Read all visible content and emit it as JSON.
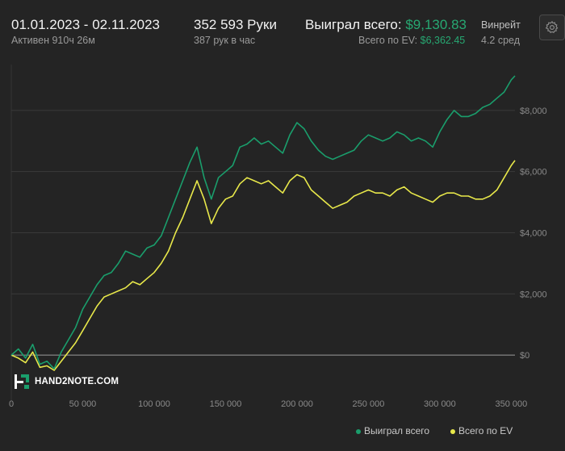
{
  "header": {
    "date_range": "01.01.2023 - 02.11.2023",
    "active_time": "Активен 910ч 26м",
    "hands": "352 593 Руки",
    "hands_per_hour": "387 рук в час",
    "won_total_label": "Выиграл всего:",
    "won_total_value": "$9,130.83",
    "ev_total_label": "Всего по EV:",
    "ev_total_value": "$6,362.45",
    "winrate_label": "Винрейт",
    "winrate_sub": "4.2 сред",
    "settings_icon": "gear-icon"
  },
  "logo": {
    "text": "HAND2NOTE.COM",
    "icon": "hand2note-logo-icon"
  },
  "colors": {
    "won": "#1a9e6c",
    "ev": "#e8e84a",
    "background": "#242424",
    "grid": "#3a3a3a",
    "zero_line": "#9a9a9a"
  },
  "chart_data": {
    "type": "line",
    "title": "",
    "xlabel": "",
    "ylabel": "",
    "xlim": [
      0,
      352593
    ],
    "ylim": [
      -1000,
      9500
    ],
    "y_axis_position": "right",
    "grid": true,
    "legend_position": "bottom-right",
    "x_ticks": [
      {
        "value": 0,
        "label": "0"
      },
      {
        "value": 50000,
        "label": "50 000"
      },
      {
        "value": 100000,
        "label": "100 000"
      },
      {
        "value": 150000,
        "label": "150 000"
      },
      {
        "value": 200000,
        "label": "200 000"
      },
      {
        "value": 250000,
        "label": "250 000"
      },
      {
        "value": 300000,
        "label": "300 000"
      },
      {
        "value": 350000,
        "label": "350 000"
      }
    ],
    "y_ticks": [
      {
        "value": 0,
        "label": "$0"
      },
      {
        "value": 2000,
        "label": "$2,000"
      },
      {
        "value": 4000,
        "label": "$4,000"
      },
      {
        "value": 6000,
        "label": "$6,000"
      },
      {
        "value": 8000,
        "label": "$8,000"
      }
    ],
    "x": [
      0,
      5000,
      10000,
      15000,
      20000,
      25000,
      30000,
      35000,
      40000,
      45000,
      50000,
      55000,
      60000,
      65000,
      70000,
      75000,
      80000,
      85000,
      90000,
      95000,
      100000,
      105000,
      110000,
      115000,
      120000,
      125000,
      130000,
      135000,
      140000,
      145000,
      150000,
      155000,
      160000,
      165000,
      170000,
      175000,
      180000,
      185000,
      190000,
      195000,
      200000,
      205000,
      210000,
      215000,
      220000,
      225000,
      230000,
      235000,
      240000,
      245000,
      250000,
      255000,
      260000,
      265000,
      270000,
      275000,
      280000,
      285000,
      290000,
      295000,
      300000,
      305000,
      310000,
      315000,
      320000,
      325000,
      330000,
      335000,
      340000,
      345000,
      350000,
      352593
    ],
    "series": [
      {
        "name": "Выиграл всего",
        "color": "#1a9e6c",
        "values": [
          0,
          200,
          -100,
          350,
          -300,
          -200,
          -450,
          100,
          500,
          900,
          1500,
          1900,
          2300,
          2600,
          2700,
          3000,
          3400,
          3300,
          3200,
          3500,
          3600,
          3900,
          4500,
          5100,
          5700,
          6300,
          6800,
          5800,
          5100,
          5800,
          6000,
          6200,
          6800,
          6900,
          7100,
          6900,
          7000,
          6800,
          6600,
          7200,
          7600,
          7400,
          7000,
          6700,
          6500,
          6400,
          6500,
          6600,
          6700,
          7000,
          7200,
          7100,
          7000,
          7100,
          7300,
          7200,
          7000,
          7100,
          7000,
          6800,
          7300,
          7700,
          8000,
          7800,
          7800,
          7900,
          8100,
          8200,
          8400,
          8600,
          9000,
          9130.83
        ]
      },
      {
        "name": "Всего по EV",
        "color": "#e8e84a",
        "values": [
          0,
          -100,
          -250,
          100,
          -400,
          -350,
          -500,
          -200,
          100,
          400,
          800,
          1200,
          1600,
          1900,
          2000,
          2100,
          2200,
          2400,
          2300,
          2500,
          2700,
          3000,
          3400,
          4000,
          4500,
          5100,
          5700,
          5100,
          4300,
          4800,
          5100,
          5200,
          5600,
          5800,
          5700,
          5600,
          5700,
          5500,
          5300,
          5700,
          5900,
          5800,
          5400,
          5200,
          5000,
          4800,
          4900,
          5000,
          5200,
          5300,
          5400,
          5300,
          5300,
          5200,
          5400,
          5500,
          5300,
          5200,
          5100,
          5000,
          5200,
          5300,
          5300,
          5200,
          5200,
          5100,
          5100,
          5200,
          5400,
          5800,
          6200,
          6362.45
        ]
      }
    ]
  }
}
